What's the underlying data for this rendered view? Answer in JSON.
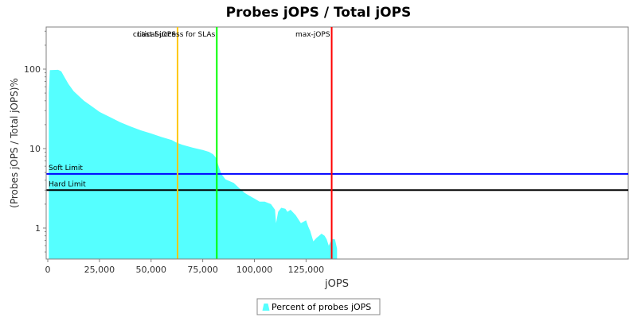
{
  "chart_data": {
    "type": "area",
    "title": "Probes jOPS / Total jOPS",
    "xlabel": "jOPS",
    "ylabel": "(Probes jOPS / Total jOPS)%",
    "xlim": [
      0,
      140000
    ],
    "ylim": [
      0.5,
      120
    ],
    "yscale": "log",
    "x_ticks": [
      {
        "value": 0,
        "label": "0"
      },
      {
        "value": 25000,
        "label": "25,000"
      },
      {
        "value": 50000,
        "label": "50,000"
      },
      {
        "value": 75000,
        "label": "75,000"
      },
      {
        "value": 100000,
        "label": "100,000"
      },
      {
        "value": 125000,
        "label": "125,000"
      }
    ],
    "y_ticks": [
      {
        "value": 1,
        "label": "1"
      },
      {
        "value": 10,
        "label": "10"
      },
      {
        "value": 100,
        "label": "100"
      }
    ],
    "grid": false,
    "color": "#55ffff",
    "series": [
      {
        "name": "Percent of probes jOPS",
        "x": [
          500,
          1000,
          5000,
          6500,
          8000,
          10000,
          12500,
          15000,
          17500,
          20000,
          25000,
          30000,
          35000,
          40000,
          45000,
          50000,
          55000,
          60000,
          62000,
          65000,
          70000,
          73500,
          75000,
          78000,
          80000,
          81500,
          82500,
          84000,
          86000,
          90000,
          92000,
          95000,
          97500,
          100000,
          102500,
          105000,
          108000,
          110000,
          110500,
          111500,
          113000,
          115000,
          116000,
          117500,
          120000,
          122500,
          125000,
          126000,
          127000,
          128500,
          130000,
          132500,
          134000,
          135000,
          136000,
          137500,
          139000,
          140000
        ],
        "y": [
          50,
          97,
          98,
          94,
          80,
          65,
          53,
          46,
          40,
          36,
          29,
          25,
          21.5,
          19,
          17,
          15.5,
          14,
          12.8,
          12,
          11.2,
          10.3,
          9.8,
          9.6,
          9.1,
          8.5,
          7.6,
          6.2,
          4.8,
          4.1,
          3.7,
          3.3,
          2.8,
          2.55,
          2.35,
          2.15,
          2.15,
          2.0,
          1.7,
          1.15,
          1.6,
          1.8,
          1.75,
          1.6,
          1.7,
          1.45,
          1.15,
          1.25,
          1.05,
          0.92,
          0.68,
          0.75,
          0.85,
          0.8,
          0.72,
          0.6,
          0.73,
          0.72,
          0.55
        ]
      }
    ],
    "markers": [
      {
        "label": "critical-jOPS",
        "x": 62800,
        "color": "#ffc800"
      },
      {
        "label": "Last Success for SLAs",
        "x": 81800,
        "color": "#00ff00"
      },
      {
        "label": "max-jOPS",
        "x": 137400,
        "color": "#ff0000"
      }
    ],
    "limits": [
      {
        "label": "Soft Limit",
        "y": 4.8,
        "color": "#0000ff"
      },
      {
        "label": "Hard Limit",
        "y": 3.0,
        "color": "#000000"
      }
    ],
    "legend": {
      "position": "bottom",
      "entries": [
        "Percent of probes jOPS"
      ]
    }
  }
}
